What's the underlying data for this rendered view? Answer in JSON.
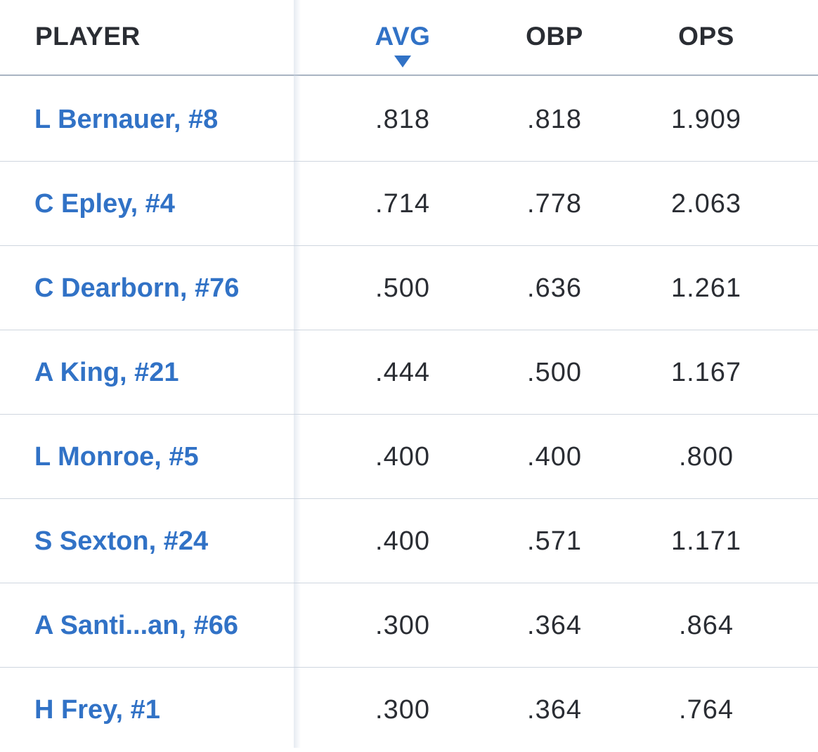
{
  "header": {
    "player": "PLAYER",
    "avg": "AVG",
    "obp": "OBP",
    "ops": "OPS",
    "sorted_column": "AVG",
    "sort_direction": "descending"
  },
  "colors": {
    "accent": "#3172c6",
    "text": "#2a2d33",
    "divider": "#cfd6df"
  },
  "rows": [
    {
      "player": "L Bernauer, #8",
      "avg": ".818",
      "obp": ".818",
      "ops": "1.909"
    },
    {
      "player": "C Epley, #4",
      "avg": ".714",
      "obp": ".778",
      "ops": "2.063"
    },
    {
      "player": "C Dearborn, #76",
      "avg": ".500",
      "obp": ".636",
      "ops": "1.261"
    },
    {
      "player": "A King, #21",
      "avg": ".444",
      "obp": ".500",
      "ops": "1.167"
    },
    {
      "player": "L Monroe, #5",
      "avg": ".400",
      "obp": ".400",
      "ops": ".800"
    },
    {
      "player": "S Sexton, #24",
      "avg": ".400",
      "obp": ".571",
      "ops": "1.171"
    },
    {
      "player": "A Santi...an, #66",
      "avg": ".300",
      "obp": ".364",
      "ops": ".864"
    },
    {
      "player": "H Frey, #1",
      "avg": ".300",
      "obp": ".364",
      "ops": ".764"
    }
  ]
}
